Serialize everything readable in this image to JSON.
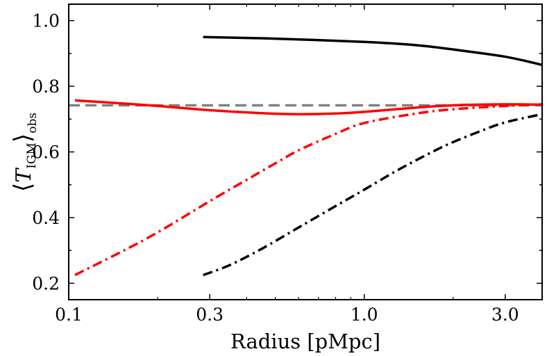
{
  "chart_data": {
    "type": "line",
    "xscale": "log",
    "xlim": [
      0.1,
      4.0
    ],
    "ylim": [
      0.15,
      1.05
    ],
    "xlabel": "Radius [pMpc]",
    "ylabel": {
      "bracket_open": "⟨",
      "symbol": "T",
      "subscript_inner": "IGM",
      "bracket_close": "⟩",
      "subscript_outer": "obs"
    },
    "xticks": [
      {
        "value": 0.1,
        "label": "0.1"
      },
      {
        "value": 0.3,
        "label": "0.3"
      },
      {
        "value": 1.0,
        "label": "1.0"
      },
      {
        "value": 3.0,
        "label": "3.0"
      }
    ],
    "yticks": [
      {
        "value": 0.2,
        "label": "0.2"
      },
      {
        "value": 0.4,
        "label": "0.4"
      },
      {
        "value": 0.6,
        "label": "0.6"
      },
      {
        "value": 0.8,
        "label": "0.8"
      },
      {
        "value": 1.0,
        "label": "1.0"
      }
    ],
    "series": [
      {
        "name": "mean-reference",
        "color": "#808080",
        "style": "dashed",
        "x": [
          0.1,
          4.0
        ],
        "y": [
          0.742,
          0.742
        ]
      },
      {
        "name": "black-solid",
        "color": "#000000",
        "style": "solid",
        "x": [
          0.285,
          0.5,
          1.0,
          1.5,
          2.0,
          3.0,
          4.0
        ],
        "y": [
          0.95,
          0.945,
          0.935,
          0.925,
          0.912,
          0.89,
          0.865
        ]
      },
      {
        "name": "red-solid",
        "color": "#ff0000",
        "style": "solid",
        "x": [
          0.105,
          0.15,
          0.2,
          0.3,
          0.45,
          0.6,
          0.8,
          1.0,
          1.5,
          2.0,
          3.0,
          4.0
        ],
        "y": [
          0.757,
          0.748,
          0.74,
          0.727,
          0.718,
          0.715,
          0.717,
          0.722,
          0.735,
          0.742,
          0.745,
          0.744
        ]
      },
      {
        "name": "red-dashdot",
        "color": "#ff0000",
        "style": "dashdot",
        "x": [
          0.105,
          0.15,
          0.2,
          0.3,
          0.4,
          0.5,
          0.6,
          0.8,
          1.0,
          1.5,
          2.0,
          3.0,
          4.0
        ],
        "y": [
          0.225,
          0.295,
          0.355,
          0.45,
          0.515,
          0.565,
          0.605,
          0.655,
          0.688,
          0.717,
          0.73,
          0.74,
          0.745
        ]
      },
      {
        "name": "black-dashdot",
        "color": "#000000",
        "style": "dashdot",
        "x": [
          0.285,
          0.35,
          0.45,
          0.6,
          0.8,
          1.0,
          1.3,
          1.7,
          2.0,
          2.5,
          3.0,
          4.0
        ],
        "y": [
          0.225,
          0.255,
          0.305,
          0.37,
          0.435,
          0.485,
          0.545,
          0.6,
          0.63,
          0.665,
          0.69,
          0.715
        ]
      }
    ]
  }
}
